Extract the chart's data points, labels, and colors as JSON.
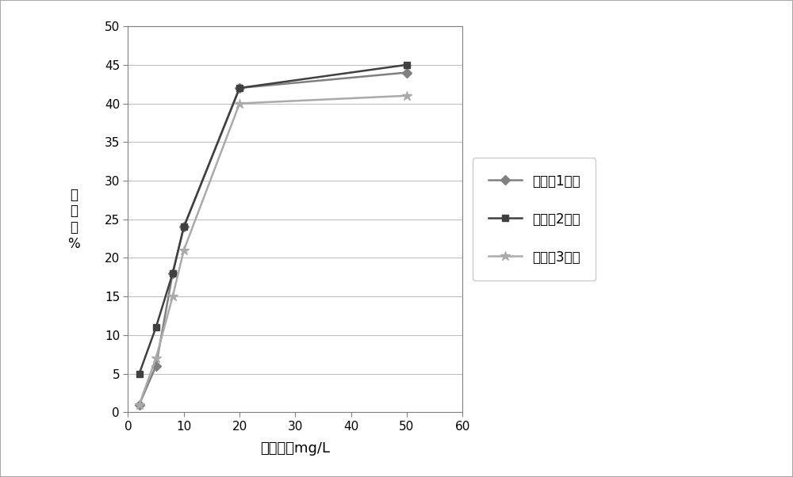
{
  "x": [
    2,
    5,
    8,
    10,
    20,
    50
  ],
  "series1_y": [
    1,
    6,
    18,
    24,
    42,
    44
  ],
  "series2_y": [
    5,
    11,
    18,
    24,
    42,
    45
  ],
  "series3_y": [
    1,
    7,
    15,
    21,
    40,
    41
  ],
  "series1_label": "实施例1面霜",
  "series2_label": "实施例2面霜",
  "series3_label": "实施例3面霜",
  "series1_color": "#808080",
  "series2_color": "#404040",
  "series3_color": "#aaaaaa",
  "xlabel": "面霜浓度mg/L",
  "ylabel_lines": [
    "清",
    "除",
    "率",
    "%"
  ],
  "xlim": [
    0,
    60
  ],
  "ylim": [
    0,
    50
  ],
  "xticks": [
    0,
    10,
    20,
    30,
    40,
    50,
    60
  ],
  "yticks": [
    0,
    5,
    10,
    15,
    20,
    25,
    30,
    35,
    40,
    45,
    50
  ],
  "background_color": "#ffffff",
  "plot_background": "#ffffff",
  "grid_color": "#c0c0c0",
  "border_color": "#808080",
  "fig_border_color": "#aaaaaa"
}
